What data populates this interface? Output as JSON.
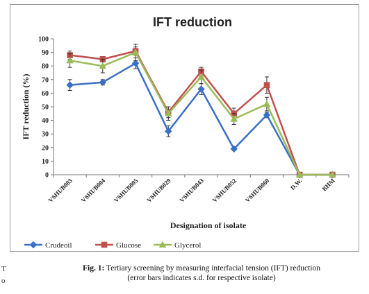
{
  "side_text": [
    "T",
    "o"
  ],
  "caption": {
    "label": "Fig. 1:",
    "line1": "Tertiary screening by measuring interfacial tension (IFT) reduction",
    "line2": "(error bars indicates s.d. for respective isolate)"
  },
  "chart_data": {
    "type": "line",
    "title": "IFT reduction",
    "xlabel": "Designation of isolate",
    "ylabel": "IFT reduction (%)",
    "ylim": [
      0,
      100
    ],
    "yticks": [
      0,
      10,
      20,
      30,
      40,
      50,
      60,
      70,
      80,
      90,
      100
    ],
    "grid": false,
    "legend_position": "bottom",
    "categories": [
      "VSHUB003",
      "VSHUB004",
      "VSHUB005",
      "VSHUB029",
      "VSHUB043",
      "VSHUB052",
      "VSHUB060",
      "D.W.",
      "BHM"
    ],
    "series": [
      {
        "name": "Crudeoil",
        "color": "#3a6fc4",
        "marker": "diamond",
        "values": [
          66,
          68,
          82,
          32,
          63,
          19,
          44,
          0,
          0
        ],
        "errors": [
          4,
          2,
          4,
          4,
          4,
          1,
          2,
          0,
          0
        ]
      },
      {
        "name": "Glucose",
        "color": "#c0504d",
        "marker": "square",
        "values": [
          88,
          85,
          91,
          46,
          76,
          45,
          66,
          0,
          0
        ],
        "errors": [
          3,
          2,
          3,
          4,
          3,
          4,
          6,
          0,
          0
        ]
      },
      {
        "name": "Glycerol",
        "color": "#9bbb59",
        "marker": "triangle",
        "values": [
          84,
          80,
          90,
          45,
          72,
          41,
          52,
          0,
          0
        ],
        "errors": [
          5,
          5,
          6,
          5,
          5,
          4,
          5,
          0,
          0
        ]
      }
    ]
  }
}
